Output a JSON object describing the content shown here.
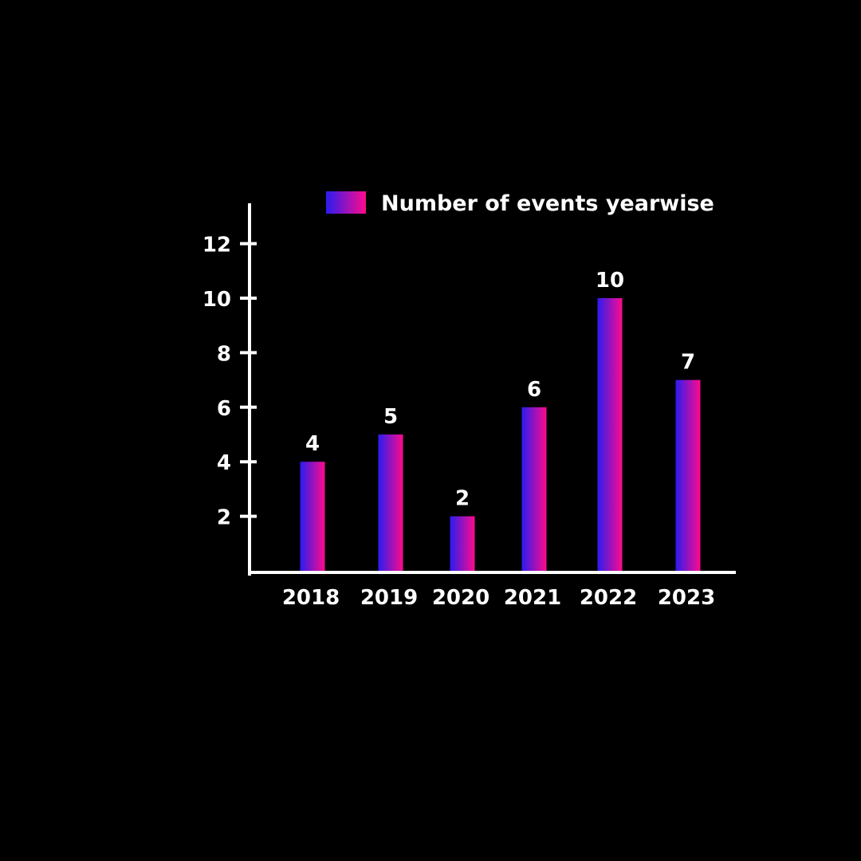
{
  "chart_data": {
    "type": "bar",
    "categories": [
      "2018",
      "2019",
      "2020",
      "2021",
      "2022",
      "2023"
    ],
    "series": [
      {
        "name": "Number of events yearwise",
        "values": [
          4,
          5,
          2,
          6,
          10,
          7
        ]
      }
    ],
    "data_labels": [
      "4",
      "5",
      "2",
      "6",
      "10",
      "7"
    ],
    "y_ticks": [
      2,
      4,
      6,
      8,
      10,
      12
    ],
    "ylim": [
      0,
      13.5
    ],
    "grid": false,
    "legend_position": "top",
    "colors": {
      "background": "#000000",
      "axis": "#ffffff",
      "bar_gradient_start": "#2a1cf0",
      "bar_gradient_end": "#ff0a8c",
      "text": "#ffffff"
    }
  }
}
